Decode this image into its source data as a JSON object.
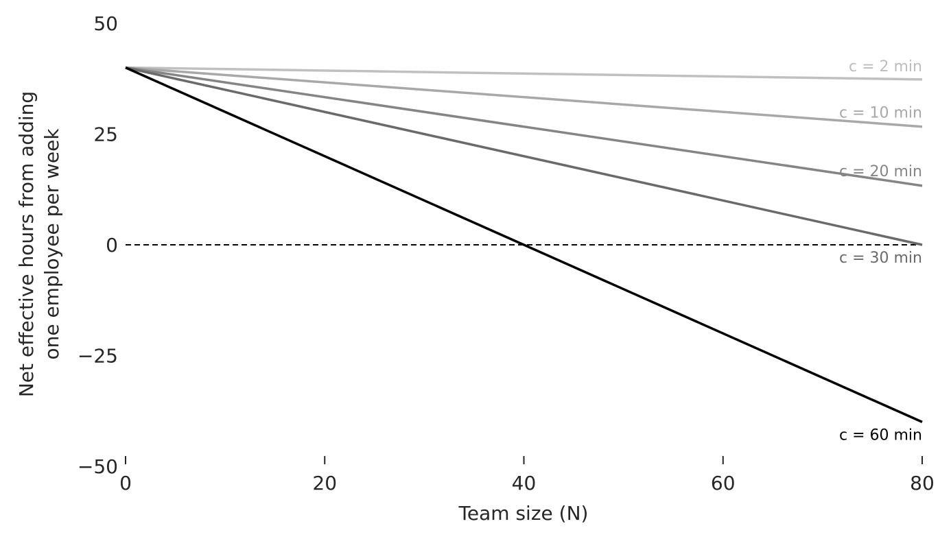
{
  "chart_data": {
    "type": "line",
    "title": "",
    "xlabel": "Team size (N)",
    "ylabel_lines": [
      "Net effective hours from adding",
      "one employee per week"
    ],
    "xlim": [
      0,
      80
    ],
    "ylim": [
      -50,
      50
    ],
    "xticks": [
      0,
      20,
      40,
      60,
      80
    ],
    "xtick_labels": [
      "0",
      "20",
      "40",
      "60",
      "80"
    ],
    "yticks": [
      50,
      25,
      0,
      -25,
      -50
    ],
    "ytick_labels": [
      "50",
      "25",
      "0",
      "−25",
      "−50"
    ],
    "grid": false,
    "legend": "inline labels at right end of lines",
    "reference_line": {
      "y": 0,
      "style": "dashed",
      "color": "#000000"
    },
    "x": [
      0,
      80
    ],
    "series": [
      {
        "name": "c = 2 min",
        "values": [
          40,
          37.33
        ],
        "color": "#c0c0c0",
        "label_color": "#bdbdbd"
      },
      {
        "name": "c = 10 min",
        "values": [
          40,
          26.67
        ],
        "color": "#a8a8a8",
        "label_color": "#a8a8a8"
      },
      {
        "name": "c = 20 min",
        "values": [
          40,
          13.33
        ],
        "color": "#858585",
        "label_color": "#858585"
      },
      {
        "name": "c = 30 min",
        "values": [
          40,
          0
        ],
        "color": "#6a6a6a",
        "label_color": "#6a6a6a"
      },
      {
        "name": "c = 60 min",
        "values": [
          40,
          -40
        ],
        "color": "#000000",
        "label_color": "#000000"
      }
    ]
  }
}
